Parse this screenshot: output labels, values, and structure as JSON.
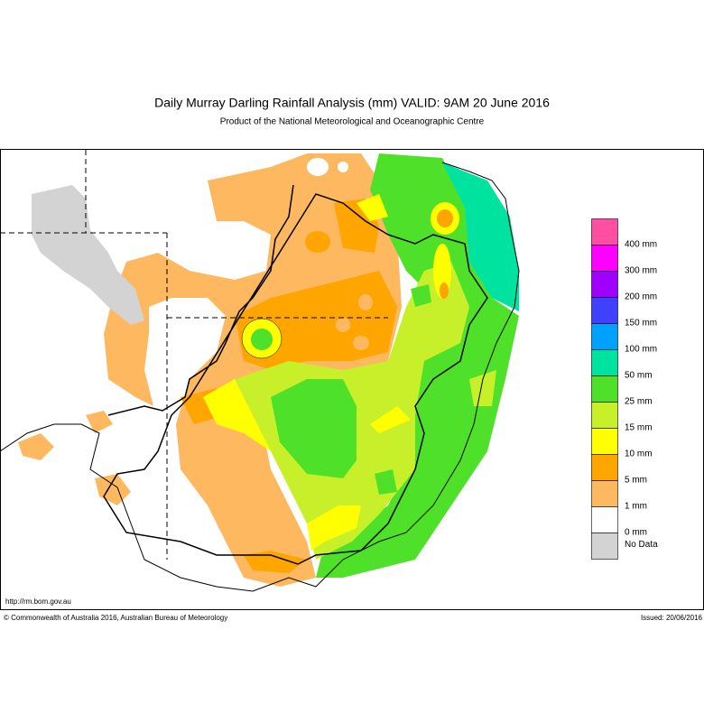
{
  "header": {
    "title": "Daily Murray Darling Rainfall Analysis (mm)  VALID: 9AM 20 June 2016",
    "subtitle": "Product of the National Meteorological and Oceanographic Centre"
  },
  "legend": {
    "items": [
      {
        "label": "400 mm",
        "color": "#ff4fa3"
      },
      {
        "label": "300 mm",
        "color": "#ff00ff"
      },
      {
        "label": "200 mm",
        "color": "#a000ff"
      },
      {
        "label": "150 mm",
        "color": "#4040ff"
      },
      {
        "label": "100 mm",
        "color": "#00a0ff"
      },
      {
        "label": "50 mm",
        "color": "#00e3a0"
      },
      {
        "label": "25 mm",
        "color": "#4fe02a"
      },
      {
        "label": "15 mm",
        "color": "#c8f02a"
      },
      {
        "label": "10 mm",
        "color": "#ffff00"
      },
      {
        "label": "5 mm",
        "color": "#ffa500"
      },
      {
        "label": "1 mm",
        "color": "#fdb860"
      },
      {
        "label": "0 mm",
        "color": "#ffffff"
      },
      {
        "label": "No Data",
        "color": "#d3d3d3"
      }
    ]
  },
  "footer": {
    "url": "http://rm.bom.gov.au",
    "copyright": "© Commonwealth of Australia 2016, Australian Bureau of Meteorology",
    "issued": "Issued: 20/06/2016"
  }
}
